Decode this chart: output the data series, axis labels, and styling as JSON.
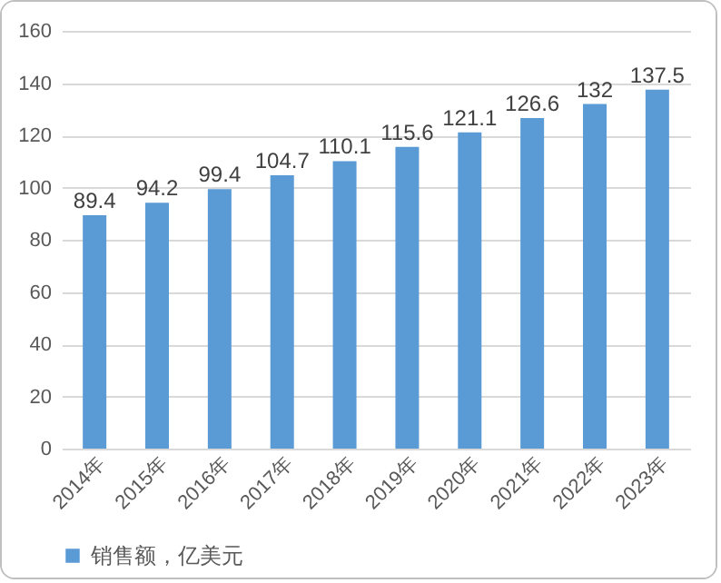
{
  "chart_data": {
    "type": "bar",
    "categories": [
      "2014年",
      "2015年",
      "2016年",
      "2017年",
      "2018年",
      "2019年",
      "2020年",
      "2021年",
      "2022年",
      "2023年"
    ],
    "series": [
      {
        "name": "销售额，亿美元",
        "color": "#5b9bd5",
        "values": [
          89.4,
          94.2,
          99.4,
          104.7,
          110.1,
          115.6,
          121.1,
          126.6,
          132,
          137.5
        ]
      }
    ],
    "ylim": [
      0,
      160
    ],
    "yticks": [
      0,
      20,
      40,
      60,
      80,
      100,
      120,
      140,
      160
    ],
    "grid": "y",
    "legend": "bottom",
    "data_labels": true
  }
}
